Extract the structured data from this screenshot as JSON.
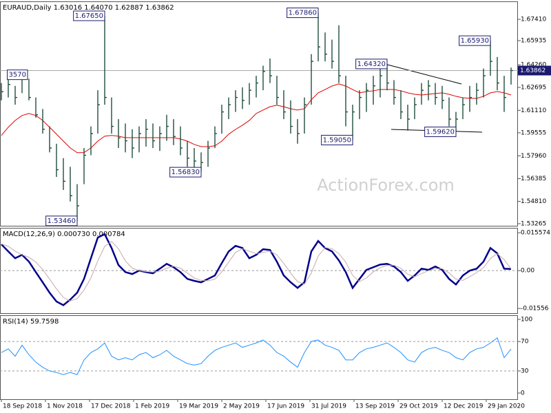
{
  "chart_data": [
    {
      "type": "ohlc",
      "title": "EURAUD,Daily  1.63016 1.64070 1.62887 1.63862",
      "watermark": "ActionForex.com",
      "color": "#1e4d3c",
      "x": [
        0,
        5,
        10,
        15,
        20,
        25,
        30,
        35,
        40,
        45,
        50,
        55,
        60,
        65,
        70,
        75,
        80,
        85,
        90,
        95,
        100,
        105,
        110,
        115,
        120,
        125,
        130,
        135,
        140,
        145,
        150,
        155,
        160,
        165,
        170,
        175,
        180,
        185,
        190,
        195,
        200,
        205,
        210,
        215,
        220,
        225,
        230,
        235,
        240,
        245,
        250,
        255,
        260,
        265,
        270,
        275,
        280,
        285,
        290,
        295,
        300,
        305,
        310,
        315,
        320,
        325,
        330,
        335,
        340,
        345,
        350,
        355,
        360,
        365,
        370
      ],
      "high": [
        1.63,
        1.633,
        1.628,
        1.638,
        1.633,
        1.62,
        1.612,
        1.6,
        1.588,
        1.578,
        1.572,
        1.56,
        1.585,
        1.6,
        1.625,
        1.6765,
        1.62,
        1.605,
        1.602,
        1.598,
        1.6,
        1.605,
        1.602,
        1.6,
        1.608,
        1.605,
        1.6,
        1.59,
        1.585,
        1.582,
        1.59,
        1.6,
        1.615,
        1.62,
        1.625,
        1.627,
        1.63,
        1.635,
        1.642,
        1.647,
        1.635,
        1.625,
        1.618,
        1.605,
        1.62,
        1.65,
        1.6786,
        1.665,
        1.66,
        1.67,
        1.635,
        1.615,
        1.625,
        1.63,
        1.635,
        1.64,
        1.6432,
        1.632,
        1.625,
        1.615,
        1.62,
        1.63,
        1.632,
        1.63,
        1.628,
        1.62,
        1.61,
        1.62,
        1.628,
        1.63,
        1.64,
        1.6593,
        1.648,
        1.635,
        1.6407
      ],
      "low": [
        1.618,
        1.62,
        1.615,
        1.623,
        1.618,
        1.606,
        1.595,
        1.582,
        1.565,
        1.556,
        1.548,
        1.5346,
        1.56,
        1.58,
        1.595,
        1.615,
        1.595,
        1.585,
        1.582,
        1.578,
        1.582,
        1.586,
        1.585,
        1.583,
        1.59,
        1.587,
        1.58,
        1.572,
        1.57,
        1.5683,
        1.572,
        1.585,
        1.595,
        1.605,
        1.61,
        1.612,
        1.615,
        1.62,
        1.625,
        1.63,
        1.615,
        1.605,
        1.595,
        1.588,
        1.595,
        1.615,
        1.645,
        1.645,
        1.64,
        1.63,
        1.6,
        1.5905,
        1.605,
        1.61,
        1.615,
        1.62,
        1.625,
        1.615,
        1.605,
        1.597,
        1.605,
        1.615,
        1.618,
        1.615,
        1.612,
        1.6,
        1.5962,
        1.605,
        1.61,
        1.615,
        1.62,
        1.635,
        1.625,
        1.61,
        1.6289
      ],
      "close": [
        1.624,
        1.629,
        1.62,
        1.635,
        1.62,
        1.608,
        1.598,
        1.585,
        1.57,
        1.562,
        1.552,
        1.545,
        1.58,
        1.595,
        1.615,
        1.62,
        1.6,
        1.592,
        1.59,
        1.585,
        1.595,
        1.598,
        1.59,
        1.595,
        1.6,
        1.593,
        1.585,
        1.578,
        1.576,
        1.575,
        1.585,
        1.595,
        1.61,
        1.615,
        1.62,
        1.618,
        1.625,
        1.63,
        1.638,
        1.635,
        1.62,
        1.61,
        1.6,
        1.595,
        1.615,
        1.645,
        1.655,
        1.65,
        1.645,
        1.635,
        1.61,
        1.61,
        1.62,
        1.625,
        1.628,
        1.635,
        1.63,
        1.62,
        1.61,
        1.605,
        1.615,
        1.625,
        1.628,
        1.62,
        1.618,
        1.605,
        1.605,
        1.615,
        1.62,
        1.625,
        1.635,
        1.645,
        1.63,
        1.62,
        1.63862
      ],
      "moving_average": {
        "color": "#e00000",
        "values": [
          1.5937,
          1.5994,
          1.6041,
          1.6075,
          1.6089,
          1.6075,
          1.6041,
          1.5994,
          1.5946,
          1.5898,
          1.5851,
          1.5818,
          1.5818,
          1.5851,
          1.5898,
          1.5932,
          1.5937,
          1.5932,
          1.5922,
          1.5922,
          1.5922,
          1.5922,
          1.5922,
          1.5922,
          1.5922,
          1.5922,
          1.5913,
          1.5898,
          1.5875,
          1.586,
          1.586,
          1.5865,
          1.5898,
          1.5946,
          1.5979,
          1.6008,
          1.6041,
          1.6089,
          1.6113,
          1.6136,
          1.6146,
          1.6136,
          1.6122,
          1.6113,
          1.6122,
          1.6184,
          1.6232,
          1.6255,
          1.6279,
          1.6294,
          1.6279,
          1.6255,
          1.6232,
          1.6241,
          1.6246,
          1.6255,
          1.6255,
          1.6255,
          1.6246,
          1.6232,
          1.6222,
          1.6217,
          1.6222,
          1.6227,
          1.6232,
          1.6222,
          1.6208,
          1.6198,
          1.6194,
          1.6194,
          1.6208,
          1.6232,
          1.6241,
          1.6232,
          1.6217
        ]
      },
      "last_price": 1.63862,
      "annotations": [
        {
          "value": 1.6357,
          "label": "3570"
        },
        {
          "value": 1.6765,
          "label": "1.67650"
        },
        {
          "value": 1.5346,
          "label": "1.53460"
        },
        {
          "value": 1.5683,
          "label": "1.56830"
        },
        {
          "value": 1.6786,
          "label": "1.67860"
        },
        {
          "value": 1.5905,
          "label": "1.59050"
        },
        {
          "value": 1.6432,
          "label": "1.64320"
        },
        {
          "value": 1.5962,
          "label": "1.59620"
        },
        {
          "value": 1.6593,
          "label": "1.65930"
        }
      ],
      "xlim": [
        -1,
        375
      ],
      "ylim": [
        1.5312,
        1.6865
      ],
      "yticks": [
        {
          "value": 1.6741,
          "label": "1.67410"
        },
        {
          "value": 1.65935,
          "label": "1.65935"
        },
        {
          "value": 1.6426,
          "label": "1.64260"
        },
        {
          "value": 1.62695,
          "label": "1.62695"
        },
        {
          "value": 1.6111,
          "label": "1.61110"
        },
        {
          "value": 1.59555,
          "label": "1.59555"
        },
        {
          "value": 1.5796,
          "label": "1.57960"
        },
        {
          "value": 1.56385,
          "label": "1.56385"
        },
        {
          "value": 1.5481,
          "label": "1.54810"
        },
        {
          "value": 1.53265,
          "label": "1.53265"
        }
      ]
    },
    {
      "type": "line",
      "title": "MACD(12,26,9) 0.000730 0.000784",
      "series": [
        {
          "color": "#00008b",
          "width": 2.5,
          "values": [
            0.0108,
            0.0079,
            0.0051,
            0.0065,
            0.0037,
            -0.0006,
            -0.0048,
            -0.0091,
            -0.0127,
            -0.0142,
            -0.0119,
            -0.0091,
            -0.0034,
            0.0051,
            0.0136,
            0.015,
            0.0093,
            0.0023,
            -0.0006,
            -0.0014,
            0.0,
            -0.0006,
            -0.0011,
            0.0008,
            0.0028,
            0.0014,
            -0.0006,
            -0.0034,
            -0.0042,
            -0.0048,
            -0.0034,
            -0.002,
            0.0031,
            0.0079,
            0.0102,
            0.0093,
            0.0051,
            0.0065,
            0.0088,
            0.0085,
            0.0037,
            -0.002,
            -0.0048,
            -0.0071,
            -0.0048,
            0.0079,
            0.0122,
            0.0093,
            0.0079,
            0.0042,
            -0.0006,
            -0.0071,
            -0.0034,
            0.0003,
            0.0014,
            0.0025,
            0.0028,
            0.0017,
            -0.0006,
            -0.0042,
            -0.002,
            0.0008,
            0.0003,
            0.0017,
            0.0003,
            -0.0034,
            -0.0057,
            -0.002,
            0.0,
            0.0008,
            0.0037,
            0.0093,
            0.0071,
            0.0008,
            0.0007
          ]
        },
        {
          "color": "#c8a8a8",
          "width": 1,
          "values": [
            0.011,
            0.01,
            0.008,
            0.0065,
            0.0055,
            0.0035,
            0.0005,
            -0.0035,
            -0.0075,
            -0.011,
            -0.0125,
            -0.0115,
            -0.008,
            -0.003,
            0.004,
            0.01,
            0.012,
            0.009,
            0.004,
            0.001,
            0.0,
            -0.0004,
            -0.0006,
            -0.0002,
            0.001,
            0.0018,
            0.001,
            -0.001,
            -0.003,
            -0.004,
            -0.0042,
            -0.0035,
            -0.0005,
            0.0035,
            0.0075,
            0.009,
            0.008,
            0.007,
            0.0075,
            0.008,
            0.0065,
            0.003,
            -0.001,
            -0.0045,
            -0.0055,
            -0.001,
            0.006,
            0.0095,
            0.009,
            0.007,
            0.0035,
            -0.002,
            -0.0045,
            -0.003,
            -0.0005,
            0.0012,
            0.0022,
            0.0022,
            0.001,
            -0.0015,
            -0.0025,
            -0.0012,
            0.0,
            0.0008,
            0.0008,
            -0.001,
            -0.0035,
            -0.004,
            -0.0025,
            -0.0008,
            0.0012,
            0.005,
            0.007,
            0.0045,
            0.0008
          ]
        }
      ],
      "dashed_levels": [
        0
      ],
      "ylim": [
        -0.0175,
        0.0176
      ],
      "yticks": [
        0.015574,
        {
          "value": 0,
          "label": "0.00"
        },
        -0.01556
      ]
    },
    {
      "type": "line",
      "title": "RSI(14) 59.7598",
      "series": [
        {
          "color": "#1e90ff",
          "width": 1,
          "values": [
            55,
            60,
            50,
            65,
            52,
            42,
            35,
            30,
            28,
            25,
            28,
            25,
            45,
            55,
            60,
            68,
            50,
            45,
            48,
            45,
            52,
            55,
            48,
            52,
            58,
            50,
            45,
            40,
            38,
            40,
            50,
            58,
            62,
            65,
            68,
            62,
            65,
            68,
            72,
            65,
            55,
            50,
            42,
            35,
            55,
            70,
            72,
            65,
            62,
            58,
            45,
            45,
            55,
            60,
            62,
            65,
            68,
            62,
            55,
            45,
            42,
            55,
            60,
            62,
            58,
            55,
            48,
            45,
            55,
            60,
            62,
            68,
            75,
            48,
            59.7598
          ]
        }
      ],
      "dashed_levels": [
        70,
        30
      ],
      "ylim": [
        -8.4,
        105.6
      ],
      "yticks": [
        100,
        70,
        30,
        0
      ],
      "xticks": [
        {
          "value": 0,
          "label": "18 Sep 2018"
        },
        {
          "value": 32,
          "label": "1 Nov 2018"
        },
        {
          "value": 64,
          "label": "17 Dec 2018"
        },
        {
          "value": 96,
          "label": "1 Feb 2019"
        },
        {
          "value": 128,
          "label": "19 Mar 2019"
        },
        {
          "value": 160,
          "label": "2 May 2019"
        },
        {
          "value": 192,
          "label": "17 Jun 2019"
        },
        {
          "value": 224,
          "label": "31 Jul 2019"
        },
        {
          "value": 256,
          "label": "13 Sep 2019"
        },
        {
          "value": 288,
          "label": "29 Oct 2019"
        },
        {
          "value": 320,
          "label": "12 Dec 2019"
        },
        {
          "value": 352,
          "label": "29 Jan 2020"
        }
      ]
    }
  ]
}
